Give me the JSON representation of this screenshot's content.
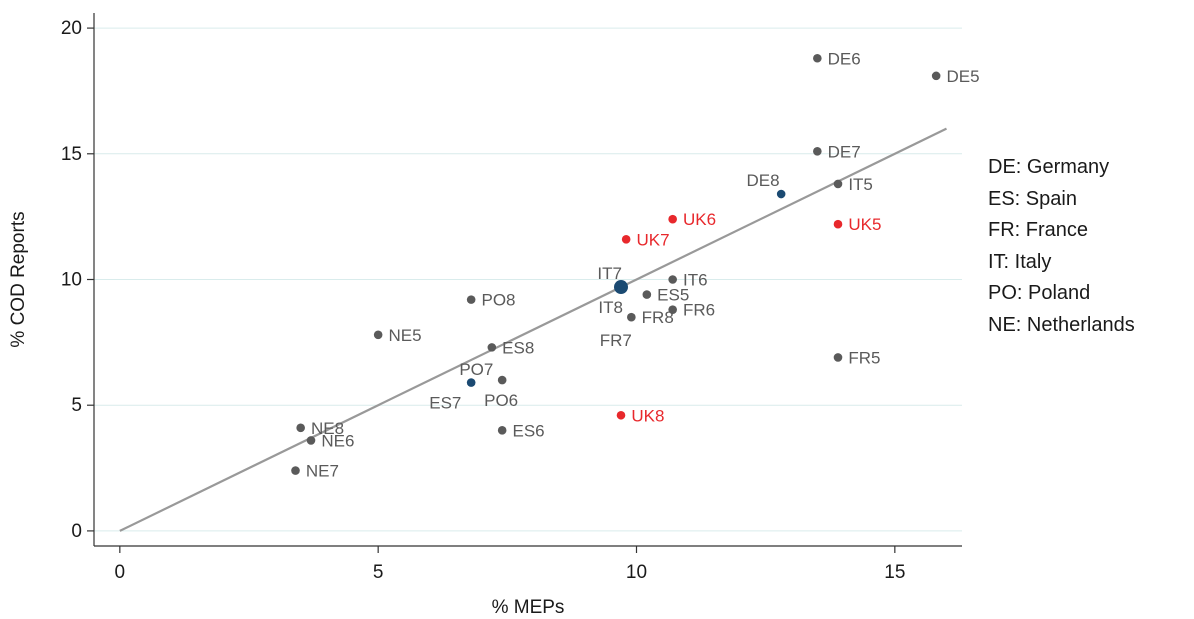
{
  "chart_data": {
    "type": "scatter",
    "xlabel": "% MEPs",
    "ylabel": "% COD Reports",
    "xlim": [
      -0.5,
      16.3
    ],
    "ylim": [
      -0.6,
      20.6
    ],
    "xticks": [
      0,
      5,
      10,
      15
    ],
    "yticks": [
      0,
      5,
      10,
      15,
      20
    ],
    "grid": "horizontal",
    "fit_line": {
      "x": [
        0,
        16
      ],
      "y": [
        0,
        16
      ],
      "color": "#999999"
    },
    "colors": {
      "default": "#5a5a5a",
      "highlight": "#e8282c",
      "blue": "#1b4a72",
      "grid": "#d9ecec",
      "axis": "#333333"
    },
    "points": [
      {
        "label": "DE6",
        "x": 13.5,
        "y": 18.8,
        "color": "default",
        "lx": 0.2,
        "ly": 0
      },
      {
        "label": "DE5",
        "x": 15.8,
        "y": 18.1,
        "color": "default",
        "lx": 0.2,
        "ly": 0
      },
      {
        "label": "DE7",
        "x": 13.5,
        "y": 15.1,
        "color": "default",
        "lx": 0.2,
        "ly": 0
      },
      {
        "label": "DE8",
        "x": 12.8,
        "y": 13.4,
        "color": "blue",
        "lx": -0.35,
        "ly": 0.55
      },
      {
        "label": "IT5",
        "x": 13.9,
        "y": 13.8,
        "color": "default",
        "lx": 0.2,
        "ly": 0
      },
      {
        "label": "UK6",
        "x": 10.7,
        "y": 12.4,
        "color": "highlight",
        "lx": 0.2,
        "ly": 0
      },
      {
        "label": "UK5",
        "x": 13.9,
        "y": 12.2,
        "color": "highlight",
        "lx": 0.2,
        "ly": 0
      },
      {
        "label": "UK7",
        "x": 9.8,
        "y": 11.6,
        "color": "highlight",
        "lx": 0.2,
        "ly": 0
      },
      {
        "label": "IT6",
        "x": 10.7,
        "y": 10.0,
        "color": "default",
        "lx": 0.2,
        "ly": 0
      },
      {
        "label": "IT7",
        "x": 9.7,
        "y": 9.7,
        "color": "blue",
        "big": true,
        "lx": -0.22,
        "ly": 0.55
      },
      {
        "label": "ES5",
        "x": 10.2,
        "y": 9.4,
        "color": "default",
        "lx": 0.2,
        "ly": 0
      },
      {
        "label": "PO8",
        "x": 6.8,
        "y": 9.2,
        "color": "default",
        "lx": 0.2,
        "ly": 0
      },
      {
        "label": "IT8",
        "x": 9.5,
        "y": 8.9,
        "color": "none",
        "lx": 0,
        "ly": 0
      },
      {
        "label": "FR8",
        "x": 9.9,
        "y": 8.5,
        "color": "default",
        "lx": 0.2,
        "ly": 0
      },
      {
        "label": "FR6",
        "x": 10.7,
        "y": 8.8,
        "color": "default",
        "lx": 0.2,
        "ly": 0
      },
      {
        "label": "NE5",
        "x": 5.0,
        "y": 7.8,
        "color": "default",
        "lx": 0.2,
        "ly": 0
      },
      {
        "label": "FR7",
        "x": 9.6,
        "y": 7.6,
        "color": "none",
        "lx": 0,
        "ly": 0
      },
      {
        "label": "ES8",
        "x": 7.2,
        "y": 7.3,
        "color": "default",
        "lx": 0.2,
        "ly": 0
      },
      {
        "label": "FR5",
        "x": 13.9,
        "y": 6.9,
        "color": "default",
        "lx": 0.2,
        "ly": 0
      },
      {
        "label": "PO7",
        "x": 6.8,
        "y": 5.9,
        "color": "blue",
        "lx": 0.1,
        "ly": 0.55
      },
      {
        "label": "ES7",
        "x": 6.3,
        "y": 5.1,
        "color": "none",
        "lx": 0,
        "ly": 0
      },
      {
        "label": "PO6",
        "x": 7.4,
        "y": 6.0,
        "color": "default",
        "lx": -0.02,
        "ly": -0.8
      },
      {
        "label": "UK8",
        "x": 9.7,
        "y": 4.6,
        "color": "highlight",
        "lx": 0.2,
        "ly": 0
      },
      {
        "label": "NE8",
        "x": 3.5,
        "y": 4.1,
        "color": "default",
        "lx": 0.2,
        "ly": 0
      },
      {
        "label": "ES6",
        "x": 7.4,
        "y": 4.0,
        "color": "default",
        "lx": 0.2,
        "ly": 0
      },
      {
        "label": "NE6",
        "x": 3.7,
        "y": 3.6,
        "color": "default",
        "lx": 0.2,
        "ly": 0
      },
      {
        "label": "NE7",
        "x": 3.4,
        "y": 2.4,
        "color": "default",
        "lx": 0.2,
        "ly": 0
      }
    ]
  },
  "legend": [
    "DE: Germany",
    "ES: Spain",
    "FR: France",
    "IT: Italy",
    "PO: Poland",
    "NE: Netherlands"
  ]
}
